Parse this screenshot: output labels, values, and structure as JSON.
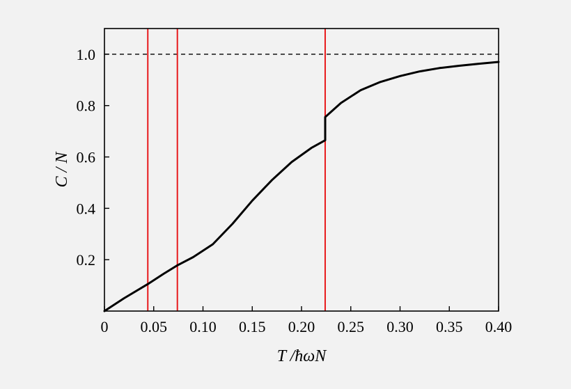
{
  "chart_data": {
    "type": "line",
    "xlabel": "T /ħωN",
    "ylabel": "C / N",
    "xlim": [
      0,
      0.4
    ],
    "ylim": [
      0,
      1.1
    ],
    "x_ticks": [
      {
        "value": 0,
        "label": "0"
      },
      {
        "value": 0.05,
        "label": "0.05"
      },
      {
        "value": 0.1,
        "label": "0.10"
      },
      {
        "value": 0.15,
        "label": "0.15"
      },
      {
        "value": 0.2,
        "label": "0.20"
      },
      {
        "value": 0.25,
        "label": "0.25"
      },
      {
        "value": 0.3,
        "label": "0.30"
      },
      {
        "value": 0.35,
        "label": "0.35"
      },
      {
        "value": 0.4,
        "label": "0.40"
      }
    ],
    "y_ticks": [
      {
        "value": 0.2,
        "label": "0.2"
      },
      {
        "value": 0.4,
        "label": "0.4"
      },
      {
        "value": 0.6,
        "label": "0.6"
      },
      {
        "value": 0.8,
        "label": "0.8"
      },
      {
        "value": 1.0,
        "label": "1.0"
      }
    ],
    "series": [
      {
        "x": [
          0,
          0.02,
          0.044,
          0.06,
          0.074,
          0.09,
          0.11,
          0.13,
          0.15,
          0.17,
          0.19,
          0.21,
          0.224,
          0.224,
          0.24,
          0.26,
          0.28,
          0.3,
          0.32,
          0.34,
          0.36,
          0.38,
          0.4
        ],
        "y": [
          0,
          0.05,
          0.105,
          0.145,
          0.178,
          0.21,
          0.26,
          0.34,
          0.43,
          0.51,
          0.58,
          0.635,
          0.665,
          0.755,
          0.81,
          0.86,
          0.892,
          0.915,
          0.933,
          0.946,
          0.955,
          0.963,
          0.97
        ],
        "color": "#000000"
      }
    ],
    "vertical_lines": [
      {
        "x": 0.044,
        "color": "#e8191c"
      },
      {
        "x": 0.074,
        "color": "#e8191c"
      },
      {
        "x": 0.224,
        "color": "#e8191c"
      }
    ],
    "reference_line": {
      "y": 1.0,
      "style": "dashed",
      "color": "#000000"
    }
  }
}
